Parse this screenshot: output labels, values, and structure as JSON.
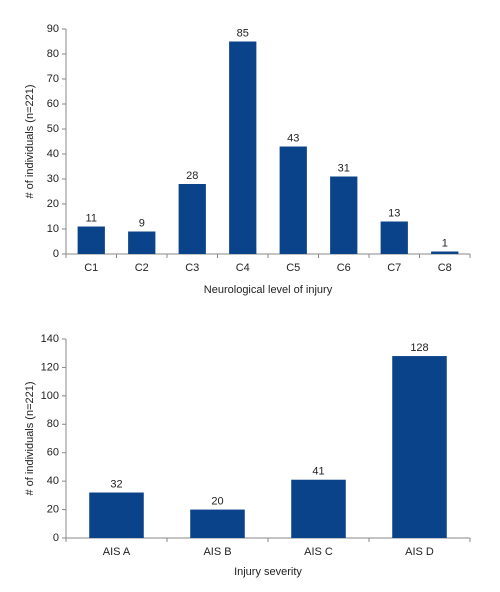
{
  "chart_data": [
    {
      "type": "bar",
      "x_label": "Neurological level of injury",
      "y_label": "# of individuals (n=221)",
      "categories": [
        "C1",
        "C2",
        "C3",
        "C4",
        "C5",
        "C6",
        "C7",
        "C8"
      ],
      "values": [
        11,
        9,
        28,
        85,
        43,
        31,
        13,
        1
      ],
      "color": "#0b438a",
      "ylim": [
        0,
        90
      ],
      "yticks": [
        0,
        10,
        20,
        30,
        40,
        50,
        60,
        70,
        80,
        90
      ],
      "grid": false
    },
    {
      "type": "bar",
      "x_label": "Injury severity",
      "y_label": "# of individuals (n=221)",
      "categories": [
        "AIS A",
        "AIS B",
        "AIS C",
        "AIS D"
      ],
      "values": [
        32,
        20,
        41,
        128
      ],
      "color": "#0b438a",
      "ylim": [
        0,
        140
      ],
      "yticks": [
        0,
        20,
        40,
        60,
        80,
        100,
        120,
        140
      ],
      "grid": false
    }
  ]
}
